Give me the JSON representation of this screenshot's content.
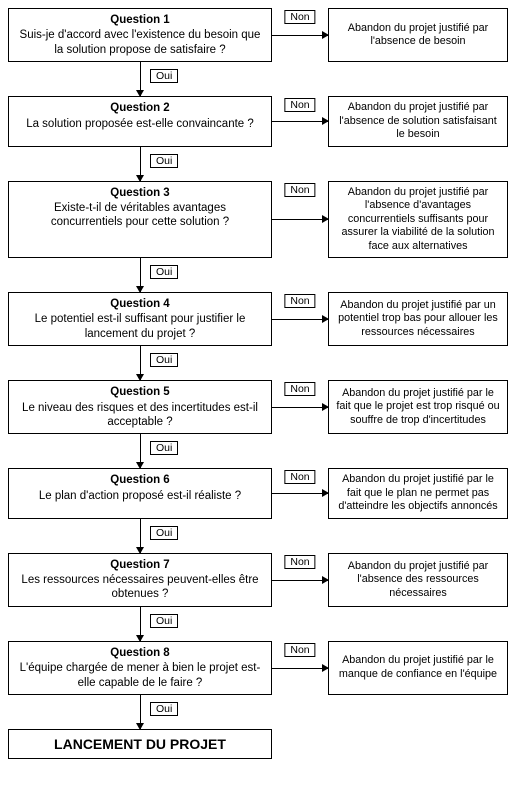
{
  "labels": {
    "non": "Non",
    "oui": "Oui",
    "final": "LANCEMENT DU PROJET"
  },
  "colors": {
    "border": "#000000",
    "background": "#ffffff",
    "text": "#000000"
  },
  "font": {
    "family": "Arial",
    "question_title_size": 11.5,
    "question_text_size": 11.5,
    "outcome_size": 10.8,
    "label_size": 10.5,
    "final_size": 14
  },
  "layout": {
    "total_width": 518,
    "total_height": 797,
    "qbox_width": 264,
    "non_gap_width": 56,
    "outbox_width": 178,
    "oui_gap_height": 34
  },
  "steps": [
    {
      "title": "Question 1",
      "question": "Suis-je d'accord avec l'existence du besoin que la solution propose de satisfaire ?",
      "outcome": "Abandon du projet justifié par l'absence de besoin"
    },
    {
      "title": "Question 2",
      "question": "La solution proposée est-elle convaincante ?",
      "outcome": "Abandon du projet justifié par l'absence de solution satisfaisant le besoin"
    },
    {
      "title": "Question 3",
      "question": "Existe-t-il de véritables avantages concurrentiels pour cette solution ?",
      "outcome": "Abandon du projet justifié par l'absence d'avantages concurrentiels suffisants pour assurer la viabilité de la solution face aux alternatives"
    },
    {
      "title": "Question 4",
      "question": "Le potentiel est-il suffisant pour justifier le lancement du projet ?",
      "outcome": "Abandon du projet justifié par un potentiel trop bas pour allouer les ressources nécessaires"
    },
    {
      "title": "Question 5",
      "question": "Le niveau des risques et des incertitudes est-il acceptable ?",
      "outcome": "Abandon du projet justifié par le fait que le projet est trop risqué ou souffre de trop d'incertitudes"
    },
    {
      "title": "Question 6",
      "question": "Le plan d'action proposé est-il réaliste ?",
      "outcome": "Abandon du projet justifié par le fait que le plan ne permet pas d'atteindre les objectifs annoncés"
    },
    {
      "title": "Question 7",
      "question": "Les ressources nécessaires peuvent-elles être obtenues ?",
      "outcome": "Abandon du projet justifié par l'absence des ressources nécessaires"
    },
    {
      "title": "Question 8",
      "question": "L'équipe chargée de mener à bien le projet est-elle capable de le faire ?",
      "outcome": "Abandon du projet justifié par le manque de confiance en l'équipe"
    }
  ]
}
